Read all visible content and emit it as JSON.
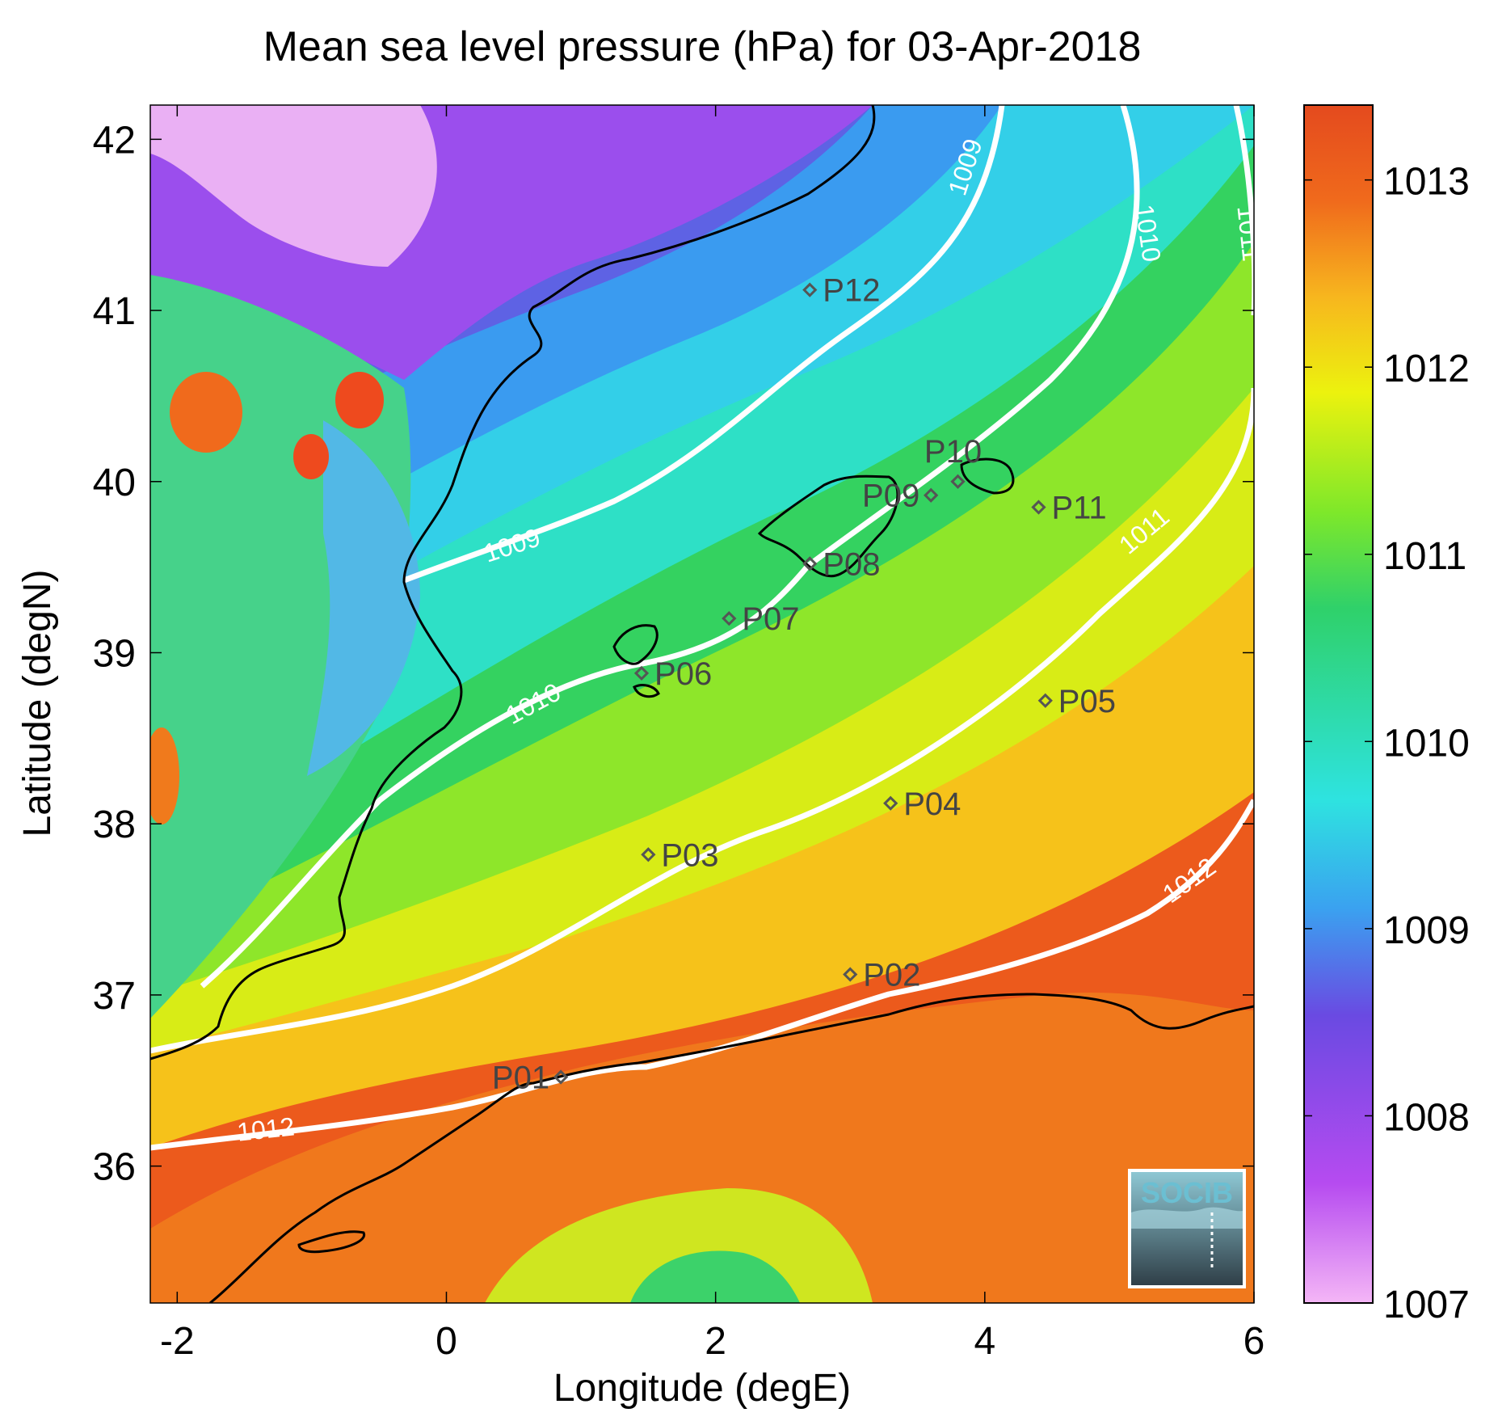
{
  "title": "Mean sea level pressure (hPa) for 03-Apr-2018",
  "axes": {
    "xlabel": "Longitude (degE)",
    "ylabel": "Latitude (degN)",
    "x_ticks": [
      "-2",
      "0",
      "2",
      "4",
      "6"
    ],
    "y_ticks": [
      "42",
      "41",
      "40",
      "39",
      "38",
      "37",
      "36"
    ],
    "x_range": [
      -2.2,
      6.0
    ],
    "y_range": [
      35.2,
      42.2
    ]
  },
  "colorbar": {
    "label_ticks": [
      "1013",
      "1012",
      "1011",
      "1010",
      "1009",
      "1008",
      "1007"
    ],
    "range": [
      1007,
      1013.4
    ],
    "colors": [
      "#f4b6f6",
      "#b64bf0",
      "#6a4ae2",
      "#3aa2f0",
      "#2ee3e0",
      "#2fd16a",
      "#7ee82a",
      "#ecf20e",
      "#f7b61e",
      "#f06a1c",
      "#e44a1e"
    ]
  },
  "contours": [
    {
      "label": "1009"
    },
    {
      "label": "1010"
    },
    {
      "label": "1011"
    },
    {
      "label": "1012"
    }
  ],
  "stations": [
    {
      "label": "P01",
      "lon": 0.85,
      "lat": 36.52
    },
    {
      "label": "P02",
      "lon": 3.0,
      "lat": 37.12
    },
    {
      "label": "P03",
      "lon": 1.5,
      "lat": 37.82
    },
    {
      "label": "P04",
      "lon": 3.3,
      "lat": 38.12
    },
    {
      "label": "P05",
      "lon": 4.45,
      "lat": 38.72
    },
    {
      "label": "P06",
      "lon": 1.45,
      "lat": 38.88
    },
    {
      "label": "P07",
      "lon": 2.1,
      "lat": 39.2
    },
    {
      "label": "P08",
      "lon": 2.7,
      "lat": 39.52
    },
    {
      "label": "P09",
      "lon": 3.6,
      "lat": 39.92
    },
    {
      "label": "P10",
      "lon": 3.8,
      "lat": 40.0
    },
    {
      "label": "P11",
      "lon": 4.4,
      "lat": 39.85
    },
    {
      "label": "P12",
      "lon": 2.7,
      "lat": 41.12
    }
  ],
  "logo": {
    "text": "SOCIB"
  }
}
